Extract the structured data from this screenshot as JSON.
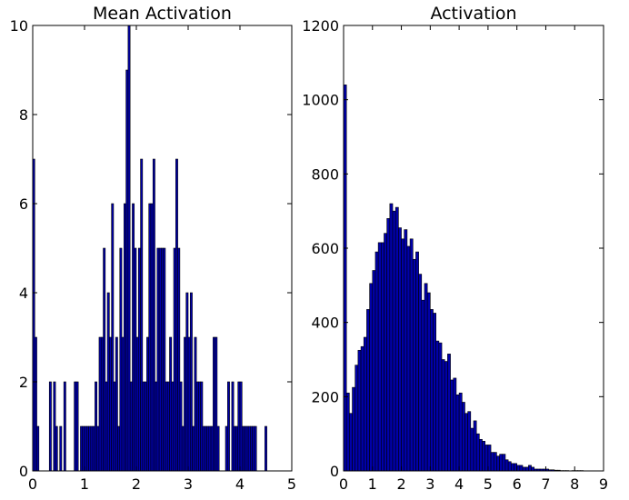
{
  "colors": {
    "bar": "#0000aa",
    "edge": "#000000",
    "frame": "#000000",
    "background": "#ffffff"
  },
  "chart_data": [
    {
      "type": "bar",
      "title": "Mean Activation",
      "xlabel": "",
      "ylabel": "",
      "xlim": [
        0,
        5
      ],
      "ylim": [
        0,
        10
      ],
      "xticks": [
        "0",
        "1",
        "2",
        "3",
        "4",
        "5"
      ],
      "yticks": [
        "0",
        "2",
        "4",
        "6",
        "8",
        "10"
      ],
      "grid": false,
      "bar_width": 0.04,
      "bin_starts": [
        0.0,
        0.04,
        0.08,
        0.32,
        0.4,
        0.44,
        0.52,
        0.6,
        0.8,
        0.84,
        0.92,
        0.96,
        1.0,
        1.04,
        1.08,
        1.12,
        1.16,
        1.2,
        1.24,
        1.28,
        1.32,
        1.36,
        1.4,
        1.44,
        1.48,
        1.52,
        1.56,
        1.6,
        1.64,
        1.68,
        1.72,
        1.76,
        1.8,
        1.84,
        1.88,
        1.92,
        1.96,
        2.0,
        2.04,
        2.08,
        2.12,
        2.16,
        2.2,
        2.24,
        2.28,
        2.32,
        2.36,
        2.4,
        2.44,
        2.48,
        2.52,
        2.56,
        2.6,
        2.64,
        2.68,
        2.72,
        2.76,
        2.8,
        2.84,
        2.88,
        2.92,
        2.96,
        3.0,
        3.04,
        3.08,
        3.12,
        3.16,
        3.2,
        3.24,
        3.28,
        3.32,
        3.36,
        3.4,
        3.44,
        3.48,
        3.52,
        3.56,
        3.72,
        3.76,
        3.84,
        3.88,
        3.92,
        3.96,
        4.0,
        4.04,
        4.08,
        4.12,
        4.16,
        4.2,
        4.24,
        4.28,
        4.48
      ],
      "values": [
        7,
        3,
        1,
        2,
        2,
        1,
        1,
        2,
        2,
        2,
        1,
        1,
        1,
        1,
        1,
        1,
        1,
        2,
        1,
        3,
        3,
        5,
        2,
        4,
        3,
        6,
        2,
        3,
        1,
        5,
        3,
        6,
        9,
        10,
        2,
        6,
        5,
        3,
        5,
        7,
        2,
        2,
        3,
        6,
        6,
        7,
        2,
        5,
        5,
        5,
        5,
        2,
        2,
        3,
        2,
        5,
        7,
        5,
        2,
        1,
        3,
        4,
        3,
        4,
        1,
        3,
        2,
        2,
        2,
        1,
        1,
        1,
        1,
        1,
        3,
        3,
        1,
        1,
        2,
        2,
        1,
        1,
        2,
        2,
        1,
        1,
        1,
        1,
        1,
        1,
        1,
        1,
        1
      ]
    },
    {
      "type": "bar",
      "title": "Activation",
      "xlabel": "",
      "ylabel": "",
      "xlim": [
        0,
        9
      ],
      "ylim": [
        0,
        1200
      ],
      "xticks": [
        "0",
        "1",
        "2",
        "3",
        "4",
        "5",
        "6",
        "7",
        "8",
        "9"
      ],
      "yticks": [
        "0",
        "200",
        "400",
        "600",
        "800",
        "1000",
        "1200"
      ],
      "grid": false,
      "bar_width": 0.1,
      "bin_starts": [
        0.0,
        0.1,
        0.2,
        0.3,
        0.4,
        0.5,
        0.6,
        0.7,
        0.8,
        0.9,
        1.0,
        1.1,
        1.2,
        1.3,
        1.4,
        1.5,
        1.6,
        1.7,
        1.8,
        1.9,
        2.0,
        2.1,
        2.2,
        2.3,
        2.4,
        2.5,
        2.6,
        2.7,
        2.8,
        2.9,
        3.0,
        3.1,
        3.2,
        3.3,
        3.4,
        3.5,
        3.6,
        3.7,
        3.8,
        3.9,
        4.0,
        4.1,
        4.2,
        4.3,
        4.4,
        4.5,
        4.6,
        4.7,
        4.8,
        4.9,
        5.0,
        5.1,
        5.2,
        5.3,
        5.4,
        5.5,
        5.6,
        5.7,
        5.8,
        5.9,
        6.0,
        6.1,
        6.2,
        6.3,
        6.4,
        6.5,
        6.6,
        6.7,
        6.8,
        6.9,
        7.0,
        7.1,
        7.2,
        7.3,
        7.4,
        7.5,
        7.6,
        7.7,
        7.8,
        7.9,
        8.0,
        8.1,
        8.2,
        8.3,
        8.4,
        8.5,
        8.6,
        8.7,
        8.8,
        8.9
      ],
      "values": [
        1040,
        210,
        155,
        225,
        285,
        325,
        335,
        360,
        435,
        505,
        540,
        590,
        615,
        615,
        640,
        680,
        720,
        700,
        710,
        655,
        625,
        650,
        605,
        625,
        570,
        590,
        530,
        460,
        505,
        480,
        435,
        425,
        350,
        345,
        300,
        295,
        315,
        245,
        250,
        205,
        210,
        185,
        155,
        160,
        115,
        135,
        100,
        85,
        80,
        70,
        70,
        50,
        50,
        40,
        45,
        45,
        30,
        25,
        20,
        20,
        15,
        15,
        10,
        10,
        15,
        10,
        5,
        5,
        5,
        5,
        5,
        3,
        3,
        2,
        2,
        1,
        1,
        1,
        0,
        1,
        1,
        1,
        1,
        0,
        0,
        0,
        0,
        0,
        0,
        0
      ]
    }
  ]
}
